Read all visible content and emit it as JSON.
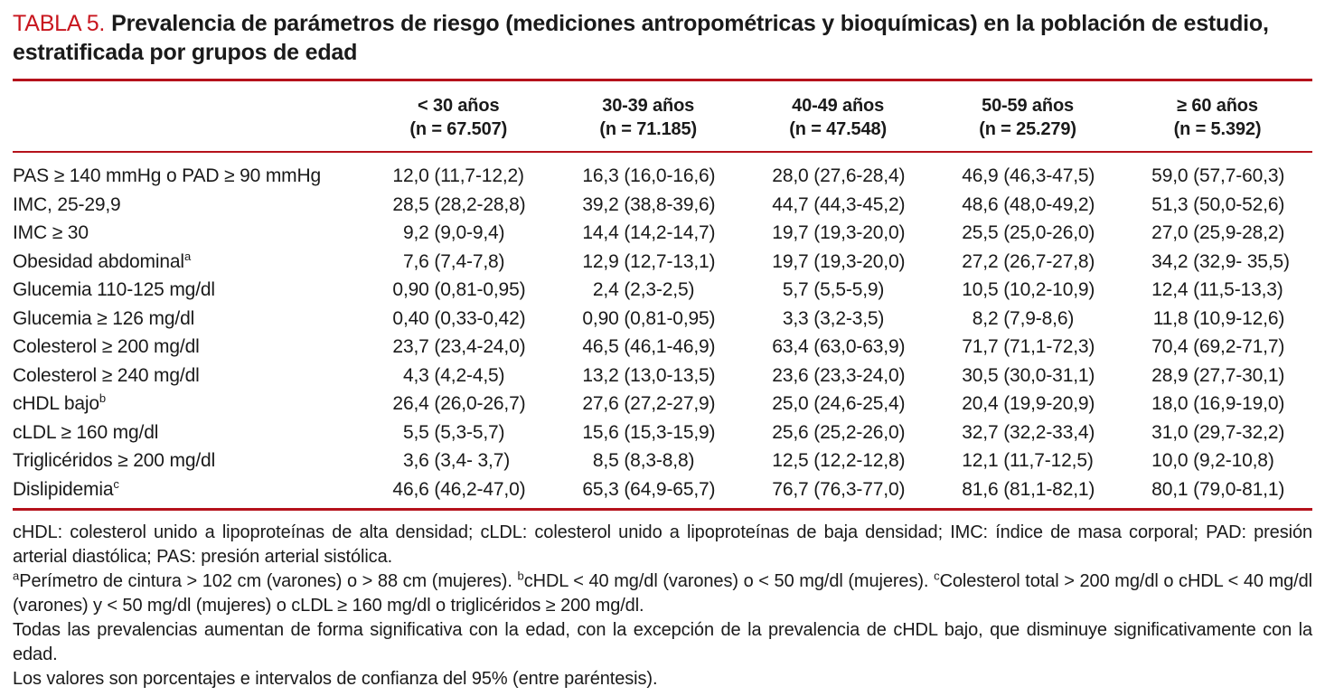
{
  "colors": {
    "accent_red": "#b5121b",
    "title_red": "#c8161e",
    "text": "#1a1a1a"
  },
  "table": {
    "number_label": "TABLA 5.",
    "title": "Prevalencia de parámetros de riesgo (mediciones antropométricas y bioquímicas) en la población de estudio, estratificada por grupos de edad",
    "column_headers": [
      {
        "age_group": "< 30 años",
        "n": "(n = 67.507)"
      },
      {
        "age_group": "30-39 años",
        "n": "(n = 71.185)"
      },
      {
        "age_group": "40-49 años",
        "n": "(n = 47.548)"
      },
      {
        "age_group": "50-59 años",
        "n": "(n = 25.279)"
      },
      {
        "age_group": "≥ 60 años",
        "n": "(n = 5.392)"
      }
    ],
    "rows": [
      {
        "label": "PAS ≥ 140 mmHg o PAD ≥ 90 mmHg",
        "sup": "",
        "values": [
          "12,0 (11,7-12,2)",
          "16,3 (16,0-16,6)",
          "28,0 (27,6-28,4)",
          "46,9 (46,3-47,5)",
          "59,0 (57,7-60,3)"
        ]
      },
      {
        "label": "IMC, 25-29,9",
        "sup": "",
        "values": [
          "28,5 (28,2-28,8)",
          "39,2 (38,8-39,6)",
          "44,7 (44,3-45,2)",
          "48,6 (48,0-49,2)",
          "51,3 (50,0-52,6)"
        ]
      },
      {
        "label": "IMC ≥ 30",
        "sup": "",
        "values": [
          "9,2 (9,0-9,4)",
          "14,4 (14,2-14,7)",
          "19,7 (19,3-20,0)",
          "25,5 (25,0-26,0)",
          "27,0 (25,9-28,2)"
        ]
      },
      {
        "label": "Obesidad abdominal",
        "sup": "a",
        "values": [
          "7,6 (7,4-7,8)",
          "12,9 (12,7-13,1)",
          "19,7 (19,3-20,0)",
          "27,2 (26,7-27,8)",
          "34,2 (32,9- 35,5)"
        ]
      },
      {
        "label": "Glucemia 110-125 mg/dl",
        "sup": "",
        "values": [
          "0,90 (0,81-0,95)",
          "2,4 (2,3-2,5)",
          "5,7 (5,5-5,9)",
          "10,5 (10,2-10,9)",
          "12,4 (11,5-13,3)"
        ]
      },
      {
        "label": "Glucemia ≥ 126 mg/dl",
        "sup": "",
        "values": [
          "0,40 (0,33-0,42)",
          "0,90 (0,81-0,95)",
          "3,3 (3,2-3,5)",
          "8,2 (7,9-8,6)",
          "11,8 (10,9-12,6)"
        ]
      },
      {
        "label": "Colesterol ≥ 200 mg/dl",
        "sup": "",
        "values": [
          "23,7 (23,4-24,0)",
          "46,5 (46,1-46,9)",
          "63,4 (63,0-63,9)",
          "71,7 (71,1-72,3)",
          "70,4 (69,2-71,7)"
        ]
      },
      {
        "label": "Colesterol ≥ 240 mg/dl",
        "sup": "",
        "values": [
          "4,3 (4,2-4,5)",
          "13,2 (13,0-13,5)",
          "23,6 (23,3-24,0)",
          "30,5 (30,0-31,1)",
          "28,9 (27,7-30,1)"
        ]
      },
      {
        "label": "cHDL bajo",
        "sup": "b",
        "values": [
          "26,4 (26,0-26,7)",
          "27,6 (27,2-27,9)",
          "25,0 (24,6-25,4)",
          "20,4 (19,9-20,9)",
          "18,0 (16,9-19,0)"
        ]
      },
      {
        "label": "cLDL ≥ 160 mg/dl",
        "sup": "",
        "values": [
          "5,5 (5,3-5,7)",
          "15,6 (15,3-15,9)",
          "25,6 (25,2-26,0)",
          "32,7 (32,2-33,4)",
          "31,0 (29,7-32,2)"
        ]
      },
      {
        "label": "Triglicéridos ≥ 200 mg/dl",
        "sup": "",
        "values": [
          "3,6 (3,4- 3,7)",
          "8,5 (8,3-8,8)",
          "12,5 (12,2-12,8)",
          "12,1 (11,7-12,5)",
          "10,0 (9,2-10,8)"
        ]
      },
      {
        "label": "Dislipidemia",
        "sup": "c",
        "values": [
          "46,6 (46,2-47,0)",
          "65,3 (64,9-65,7)",
          "76,7 (76,3-77,0)",
          "81,6 (81,1-82,1)",
          "80,1 (79,0-81,1)"
        ]
      }
    ],
    "footnotes": [
      [
        {
          "text": "cHDL: colesterol unido a lipoproteínas de alta densidad; cLDL: colesterol unido a lipoproteínas de baja densidad; IMC: índice de masa corporal; PAD: presión arterial diastólica; PAS: presión arterial sistólica."
        }
      ],
      [
        {
          "sup": "a"
        },
        {
          "text": "Perímetro de cintura > 102 cm (varones) o > 88 cm (mujeres). "
        },
        {
          "sup": "b"
        },
        {
          "text": "cHDL < 40 mg/dl (varones) o < 50 mg/dl (mujeres). "
        },
        {
          "sup": "c"
        },
        {
          "text": "Colesterol total > 200 mg/dl o cHDL < 40 mg/dl (varones) y < 50 mg/dl (mujeres) o cLDL ≥ 160 mg/dl o triglicéridos ≥ 200 mg/dl."
        }
      ],
      [
        {
          "text": "Todas las prevalencias aumentan de forma significativa con la edad, con la excepción de la prevalencia de cHDL bajo, que disminuye significativamente con la edad."
        }
      ],
      [
        {
          "text": "Los valores son porcentajes e intervalos de confianza del 95% (entre paréntesis)."
        }
      ]
    ]
  }
}
